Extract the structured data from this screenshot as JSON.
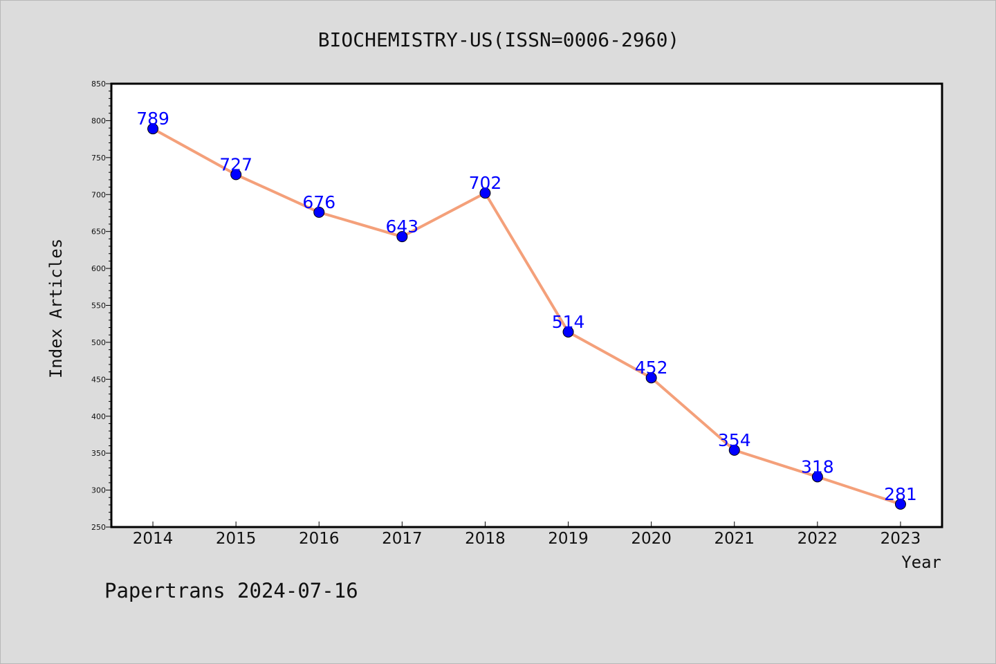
{
  "footer": "Papertrans 2024-07-16",
  "colors": {
    "background": "#dcdcdc",
    "plot_background": "#ffffff",
    "line": "#f4a07a",
    "marker": "#0000ff",
    "data_label": "#0000ff"
  },
  "chart_data": {
    "type": "line",
    "title": "BIOCHEMISTRY-US(ISSN=0006-2960)",
    "xlabel": "Year",
    "ylabel": "Index Articles",
    "categories": [
      "2014",
      "2015",
      "2016",
      "2017",
      "2018",
      "2019",
      "2020",
      "2021",
      "2022",
      "2023"
    ],
    "series": [
      {
        "values": [
          789,
          727,
          676,
          643,
          702,
          514,
          452,
          354,
          318,
          281
        ]
      }
    ],
    "ylim": [
      250,
      850
    ],
    "yticks": [
      250,
      300,
      350,
      400,
      450,
      500,
      550,
      600,
      650,
      700,
      750,
      800,
      850
    ],
    "y_minor_step": 10,
    "grid": false,
    "data_labels": true,
    "legend": "none"
  }
}
